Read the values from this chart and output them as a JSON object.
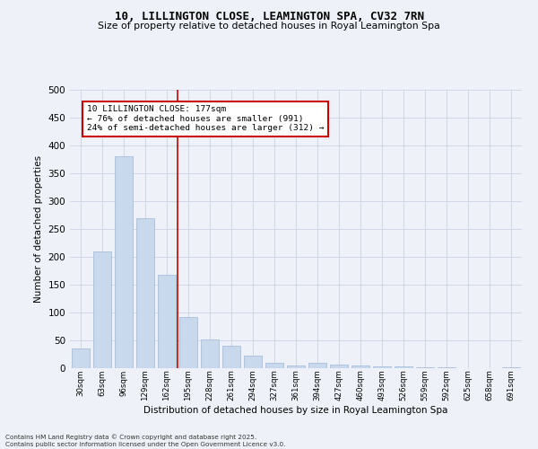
{
  "title1": "10, LILLINGTON CLOSE, LEAMINGTON SPA, CV32 7RN",
  "title2": "Size of property relative to detached houses in Royal Leamington Spa",
  "xlabel": "Distribution of detached houses by size in Royal Leamington Spa",
  "ylabel": "Number of detached properties",
  "bar_labels": [
    "30sqm",
    "63sqm",
    "96sqm",
    "129sqm",
    "162sqm",
    "195sqm",
    "228sqm",
    "261sqm",
    "294sqm",
    "327sqm",
    "361sqm",
    "394sqm",
    "427sqm",
    "460sqm",
    "493sqm",
    "526sqm",
    "559sqm",
    "592sqm",
    "625sqm",
    "658sqm",
    "691sqm"
  ],
  "bar_values": [
    35,
    210,
    380,
    270,
    168,
    92,
    52,
    40,
    23,
    10,
    5,
    10,
    7,
    5,
    3,
    4,
    1,
    1,
    0,
    0,
    2
  ],
  "bar_color": "#c8d9ed",
  "bar_edgecolor": "#a0b8d8",
  "vline_x": 4.5,
  "vline_color": "#cc0000",
  "annotation_text": "10 LILLINGTON CLOSE: 177sqm\n← 76% of detached houses are smaller (991)\n24% of semi-detached houses are larger (312) →",
  "annotation_box_color": "#cc0000",
  "ylim": [
    0,
    500
  ],
  "yticks": [
    0,
    50,
    100,
    150,
    200,
    250,
    300,
    350,
    400,
    450,
    500
  ],
  "grid_color": "#d0d8e8",
  "bg_color": "#eef2f8",
  "footnote": "Contains HM Land Registry data © Crown copyright and database right 2025.\nContains public sector information licensed under the Open Government Licence v3.0."
}
